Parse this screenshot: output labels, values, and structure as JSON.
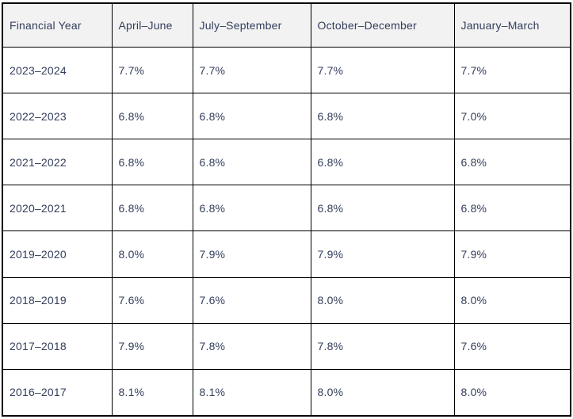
{
  "table": {
    "header": {
      "cells": [
        "Financial Year",
        "April–June",
        "July–September",
        "October–December",
        "January–March"
      ]
    },
    "rows": [
      {
        "cells": [
          "2023–2024",
          "7.7%",
          "7.7%",
          "7.7%",
          "7.7%"
        ]
      },
      {
        "cells": [
          "2022–2023",
          "6.8%",
          "6.8%",
          "6.8%",
          "7.0%"
        ]
      },
      {
        "cells": [
          "2021–2022",
          "6.8%",
          "6.8%",
          "6.8%",
          "6.8%"
        ]
      },
      {
        "cells": [
          "2020–2021",
          "6.8%",
          "6.8%",
          "6.8%",
          "6.8%"
        ]
      },
      {
        "cells": [
          "2019–2020",
          "8.0%",
          "7.9%",
          "7.9%",
          "7.9%"
        ]
      },
      {
        "cells": [
          "2018–2019",
          "7.6%",
          "7.6%",
          "8.0%",
          "8.0%"
        ]
      },
      {
        "cells": [
          "2017–2018",
          "7.9%",
          "7.8%",
          "7.8%",
          "7.6%"
        ]
      },
      {
        "cells": [
          "2016–2017",
          "8.1%",
          "8.1%",
          "8.0%",
          "8.0%"
        ]
      }
    ]
  },
  "colors": {
    "header_bg": "#f2f2f2",
    "body_bg": "#ffffff",
    "text": "#333e5c",
    "border": "#000000"
  }
}
